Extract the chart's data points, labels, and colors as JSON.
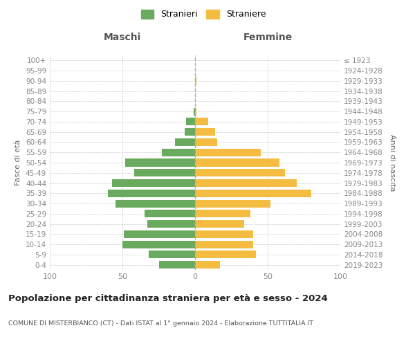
{
  "age_groups": [
    "0-4",
    "5-9",
    "10-14",
    "15-19",
    "20-24",
    "25-29",
    "30-34",
    "35-39",
    "40-44",
    "45-49",
    "50-54",
    "55-59",
    "60-64",
    "65-69",
    "70-74",
    "75-79",
    "80-84",
    "85-89",
    "90-94",
    "95-99",
    "100+"
  ],
  "birth_years": [
    "2019-2023",
    "2014-2018",
    "2009-2013",
    "2004-2008",
    "1999-2003",
    "1994-1998",
    "1989-1993",
    "1984-1988",
    "1979-1983",
    "1974-1978",
    "1969-1973",
    "1964-1968",
    "1959-1963",
    "1954-1958",
    "1949-1953",
    "1944-1948",
    "1939-1943",
    "1934-1938",
    "1929-1933",
    "1924-1928",
    "≤ 1923"
  ],
  "maschi": [
    25,
    32,
    50,
    49,
    33,
    35,
    55,
    60,
    57,
    42,
    48,
    23,
    14,
    7,
    6,
    1,
    0,
    0,
    0,
    0,
    0
  ],
  "femmine": [
    17,
    42,
    40,
    40,
    34,
    38,
    52,
    80,
    70,
    62,
    58,
    45,
    15,
    14,
    9,
    1,
    0,
    0,
    1,
    0,
    0
  ],
  "male_color": "#6aaa5e",
  "female_color": "#f5bc42",
  "background_color": "#ffffff",
  "grid_color": "#cccccc",
  "title": "Popolazione per cittadinanza straniera per età e sesso - 2024",
  "subtitle": "COMUNE DI MISTERBIANCO (CT) - Dati ISTAT al 1° gennaio 2024 - Elaborazione TUTTITALIA.IT",
  "xlabel_left": "Maschi",
  "xlabel_right": "Femmine",
  "ylabel_left": "Fasce di età",
  "ylabel_right": "Anni di nascita",
  "legend_male": "Stranieri",
  "legend_female": "Straniere",
  "xlim": 100
}
